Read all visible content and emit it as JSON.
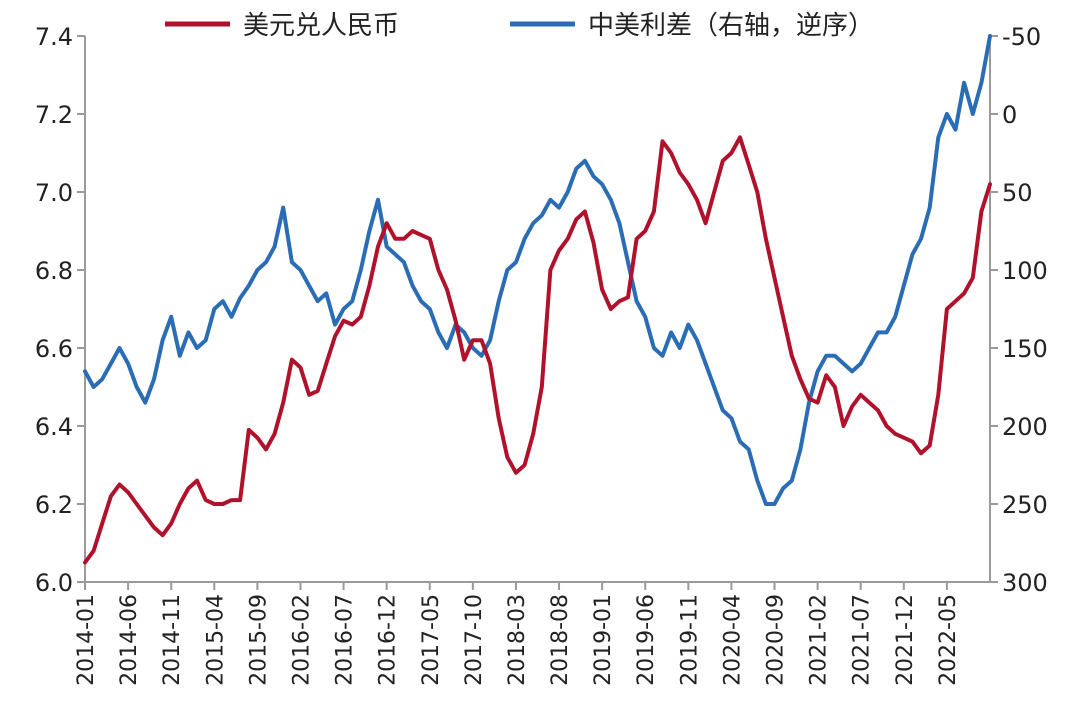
{
  "chart_data": {
    "type": "line",
    "legend_placement": "top",
    "grid": false,
    "x_tick_labels": [
      "2014-01",
      "2014-06",
      "2014-11",
      "2015-04",
      "2015-09",
      "2016-02",
      "2016-07",
      "2016-12",
      "2017-05",
      "2017-10",
      "2018-03",
      "2018-08",
      "2019-01",
      "2019-06",
      "2019-11",
      "2020-04",
      "2020-09",
      "2021-02",
      "2021-07",
      "2021-12",
      "2022-05"
    ],
    "x_range": [
      "2014-01",
      "2022-10"
    ],
    "y_left": {
      "range": [
        6.0,
        7.4
      ],
      "ticks": [
        "6.0",
        "6.2",
        "6.4",
        "6.6",
        "6.8",
        "7.0",
        "7.2",
        "7.4"
      ]
    },
    "y_right": {
      "range": [
        -50,
        300
      ],
      "reversed": true,
      "ticks": [
        "-50",
        "0",
        "50",
        "100",
        "150",
        "200",
        "250",
        "300"
      ]
    },
    "series": [
      {
        "name": "美元兑人民币",
        "axis": "left",
        "color": "#b0122c",
        "x": [
          "2014-01",
          "2014-02",
          "2014-03",
          "2014-04",
          "2014-05",
          "2014-06",
          "2014-07",
          "2014-08",
          "2014-09",
          "2014-10",
          "2014-11",
          "2014-12",
          "2015-01",
          "2015-02",
          "2015-03",
          "2015-04",
          "2015-05",
          "2015-06",
          "2015-07",
          "2015-08",
          "2015-09",
          "2015-10",
          "2015-11",
          "2015-12",
          "2016-01",
          "2016-02",
          "2016-03",
          "2016-04",
          "2016-05",
          "2016-06",
          "2016-07",
          "2016-08",
          "2016-09",
          "2016-10",
          "2016-11",
          "2016-12",
          "2017-01",
          "2017-02",
          "2017-03",
          "2017-04",
          "2017-05",
          "2017-06",
          "2017-07",
          "2017-08",
          "2017-09",
          "2017-10",
          "2017-11",
          "2017-12",
          "2018-01",
          "2018-02",
          "2018-03",
          "2018-04",
          "2018-05",
          "2018-06",
          "2018-07",
          "2018-08",
          "2018-09",
          "2018-10",
          "2018-11",
          "2018-12",
          "2019-01",
          "2019-02",
          "2019-03",
          "2019-04",
          "2019-05",
          "2019-06",
          "2019-07",
          "2019-08",
          "2019-09",
          "2019-10",
          "2019-11",
          "2019-12",
          "2020-01",
          "2020-02",
          "2020-03",
          "2020-04",
          "2020-05",
          "2020-06",
          "2020-07",
          "2020-08",
          "2020-09",
          "2020-10",
          "2020-11",
          "2020-12",
          "2021-01",
          "2021-02",
          "2021-03",
          "2021-04",
          "2021-05",
          "2021-06",
          "2021-07",
          "2021-08",
          "2021-09",
          "2021-10",
          "2021-11",
          "2021-12",
          "2022-01",
          "2022-02",
          "2022-03",
          "2022-04",
          "2022-05",
          "2022-06",
          "2022-07",
          "2022-08",
          "2022-09",
          "2022-10"
        ],
        "values": [
          6.05,
          6.08,
          6.15,
          6.22,
          6.25,
          6.23,
          6.2,
          6.17,
          6.14,
          6.12,
          6.15,
          6.2,
          6.24,
          6.26,
          6.21,
          6.2,
          6.2,
          6.21,
          6.21,
          6.39,
          6.37,
          6.34,
          6.38,
          6.46,
          6.57,
          6.55,
          6.48,
          6.49,
          6.56,
          6.63,
          6.67,
          6.66,
          6.68,
          6.76,
          6.86,
          6.92,
          6.88,
          6.88,
          6.9,
          6.89,
          6.88,
          6.8,
          6.75,
          6.67,
          6.57,
          6.62,
          6.62,
          6.56,
          6.42,
          6.32,
          6.28,
          6.3,
          6.38,
          6.5,
          6.8,
          6.85,
          6.88,
          6.93,
          6.95,
          6.87,
          6.75,
          6.7,
          6.72,
          6.73,
          6.88,
          6.9,
          6.95,
          7.13,
          7.1,
          7.05,
          7.02,
          6.98,
          6.92,
          7.0,
          7.08,
          7.1,
          7.14,
          7.07,
          7.0,
          6.88,
          6.78,
          6.68,
          6.58,
          6.52,
          6.47,
          6.46,
          6.53,
          6.5,
          6.4,
          6.45,
          6.48,
          6.46,
          6.44,
          6.4,
          6.38,
          6.37,
          6.36,
          6.33,
          6.35,
          6.48,
          6.7,
          6.72,
          6.74,
          6.78,
          6.95,
          7.02
        ]
      },
      {
        "name": "中美利差（右轴，逆序）",
        "axis": "right",
        "color": "#2a6db5",
        "x": [
          "2014-01",
          "2014-02",
          "2014-03",
          "2014-04",
          "2014-05",
          "2014-06",
          "2014-07",
          "2014-08",
          "2014-09",
          "2014-10",
          "2014-11",
          "2014-12",
          "2015-01",
          "2015-02",
          "2015-03",
          "2015-04",
          "2015-05",
          "2015-06",
          "2015-07",
          "2015-08",
          "2015-09",
          "2015-10",
          "2015-11",
          "2015-12",
          "2016-01",
          "2016-02",
          "2016-03",
          "2016-04",
          "2016-05",
          "2016-06",
          "2016-07",
          "2016-08",
          "2016-09",
          "2016-10",
          "2016-11",
          "2016-12",
          "2017-01",
          "2017-02",
          "2017-03",
          "2017-04",
          "2017-05",
          "2017-06",
          "2017-07",
          "2017-08",
          "2017-09",
          "2017-10",
          "2017-11",
          "2017-12",
          "2018-01",
          "2018-02",
          "2018-03",
          "2018-04",
          "2018-05",
          "2018-06",
          "2018-07",
          "2018-08",
          "2018-09",
          "2018-10",
          "2018-11",
          "2018-12",
          "2019-01",
          "2019-02",
          "2019-03",
          "2019-04",
          "2019-05",
          "2019-06",
          "2019-07",
          "2019-08",
          "2019-09",
          "2019-10",
          "2019-11",
          "2019-12",
          "2020-01",
          "2020-02",
          "2020-03",
          "2020-04",
          "2020-05",
          "2020-06",
          "2020-07",
          "2020-08",
          "2020-09",
          "2020-10",
          "2020-11",
          "2020-12",
          "2021-01",
          "2021-02",
          "2021-03",
          "2021-04",
          "2021-05",
          "2021-06",
          "2021-07",
          "2021-08",
          "2021-09",
          "2021-10",
          "2021-11",
          "2021-12",
          "2022-01",
          "2022-02",
          "2022-03",
          "2022-04",
          "2022-05",
          "2022-06",
          "2022-07",
          "2022-08",
          "2022-09",
          "2022-10"
        ],
        "values": [
          165,
          175,
          170,
          160,
          150,
          160,
          175,
          185,
          170,
          145,
          130,
          155,
          140,
          150,
          145,
          125,
          120,
          130,
          118,
          110,
          100,
          95,
          85,
          60,
          95,
          100,
          110,
          120,
          115,
          135,
          125,
          120,
          100,
          75,
          55,
          85,
          90,
          95,
          110,
          120,
          125,
          140,
          150,
          135,
          140,
          150,
          155,
          145,
          120,
          100,
          95,
          80,
          70,
          65,
          55,
          60,
          50,
          35,
          30,
          40,
          45,
          55,
          70,
          95,
          120,
          130,
          150,
          155,
          140,
          150,
          135,
          145,
          160,
          175,
          190,
          195,
          210,
          215,
          235,
          250,
          250,
          240,
          235,
          215,
          185,
          165,
          155,
          155,
          160,
          165,
          160,
          150,
          140,
          140,
          130,
          110,
          90,
          80,
          60,
          15,
          0,
          10,
          -20,
          0,
          -20,
          -50
        ]
      }
    ]
  }
}
